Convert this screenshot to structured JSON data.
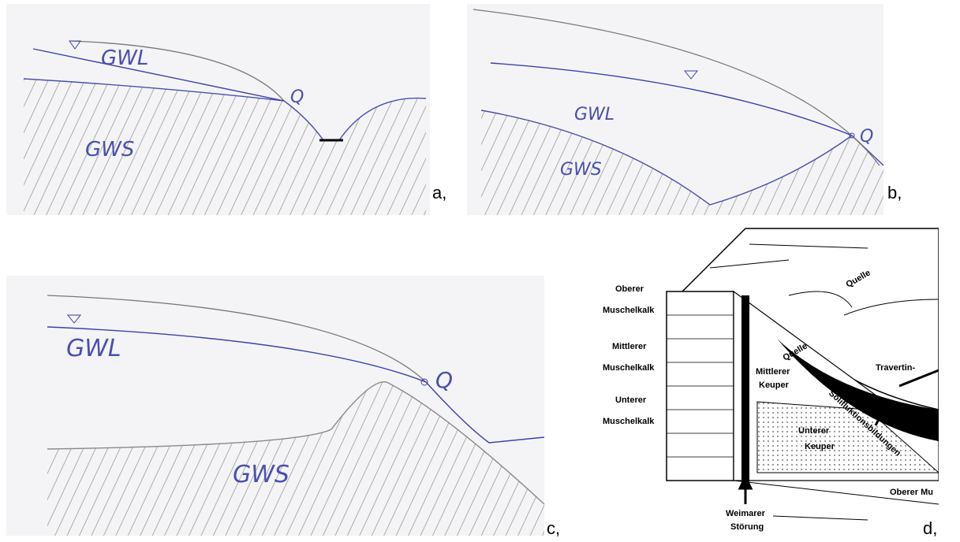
{
  "panels": {
    "a": {
      "gwl": "GWL",
      "gws": "GWS",
      "spring": "Q",
      "label": "a,"
    },
    "b": {
      "gwl": "GWL",
      "gws": "GWS",
      "spring": "Q",
      "label": "b,"
    },
    "c": {
      "gwl": "GWL",
      "gws": "GWS",
      "spring": "Q",
      "label": "c,"
    },
    "d": {
      "strata": [
        "Oberer",
        "Muschelkalk",
        "Mittlerer",
        "Muschelkalk",
        "Unterer",
        "Muschelkalk"
      ],
      "springs": [
        "Quelle",
        "Quelle"
      ],
      "keuper_mid": [
        "Mittlerer",
        "Keuper"
      ],
      "travertin": "Travertin-",
      "keuper_low": [
        "Unterer",
        "Keuper"
      ],
      "solifluktion": "Solifluktionsbildungen",
      "fault": [
        "Weimarer",
        "Störung"
      ],
      "bottom": "Oberer Mu",
      "label": "d,"
    }
  }
}
